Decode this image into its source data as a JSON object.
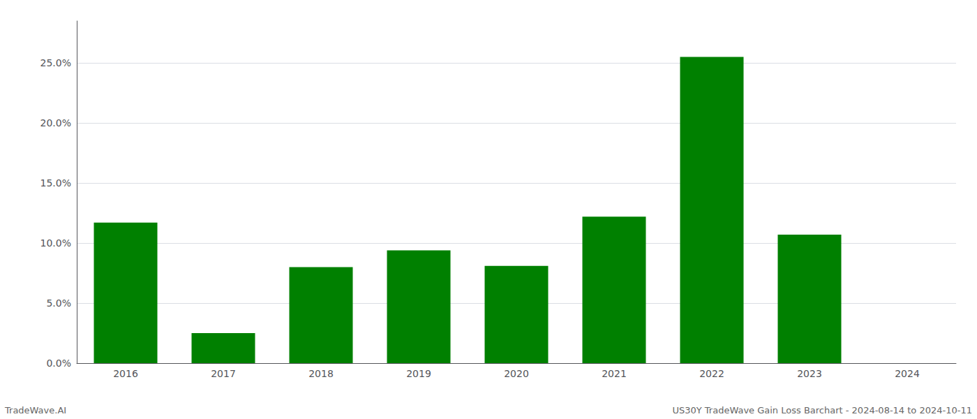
{
  "chart_data": {
    "type": "bar",
    "categories": [
      "2016",
      "2017",
      "2018",
      "2019",
      "2020",
      "2021",
      "2022",
      "2023",
      "2024"
    ],
    "values": [
      0.117,
      0.025,
      0.08,
      0.094,
      0.081,
      0.122,
      0.255,
      0.107,
      0.0
    ],
    "color": "#008000",
    "ylim": [
      0,
      0.285
    ],
    "yticks": [
      {
        "value": 0.0,
        "label": "0.0%"
      },
      {
        "value": 0.05,
        "label": "5.0%"
      },
      {
        "value": 0.1,
        "label": "10.0%"
      },
      {
        "value": 0.15,
        "label": "15.0%"
      },
      {
        "value": 0.2,
        "label": "20.0%"
      },
      {
        "value": 0.25,
        "label": "25.0%"
      }
    ],
    "grid": true,
    "annotations": [
      "TradeWave.AI",
      "US30Y TradeWave Gain Loss Barchart - 2024-08-14 to 2024-10-11"
    ]
  }
}
